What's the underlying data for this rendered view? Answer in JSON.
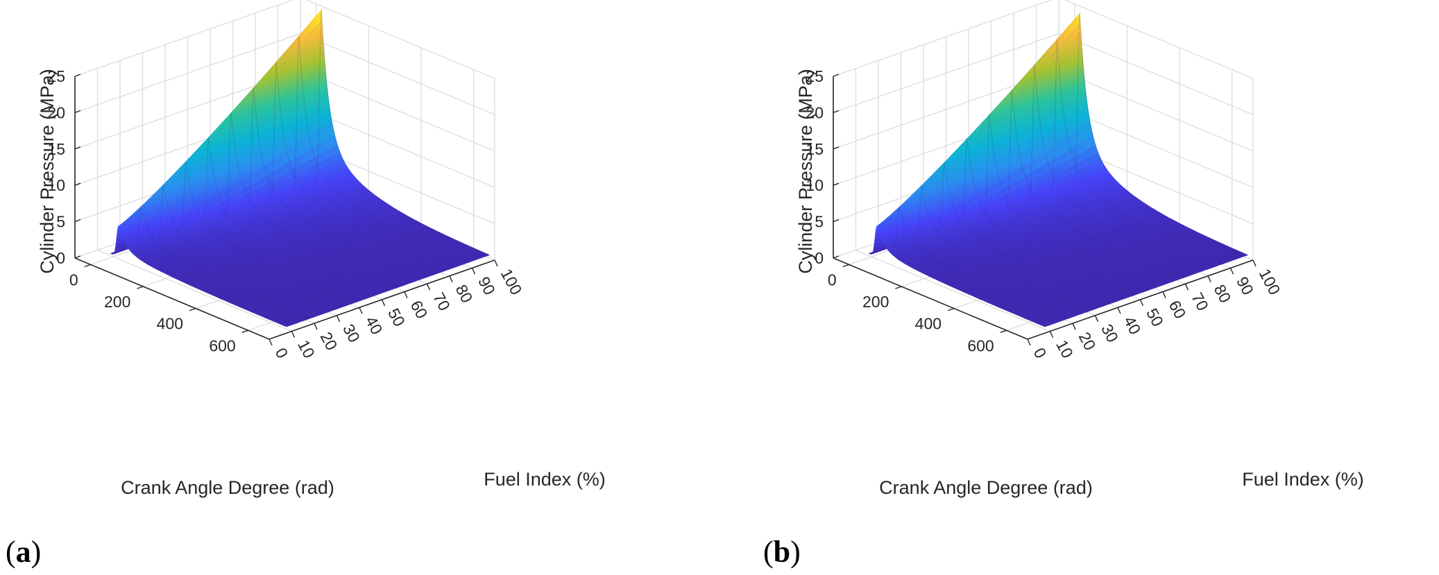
{
  "colors": {
    "colormap": [
      "#3e26a8",
      "#4743f8",
      "#2b8ef0",
      "#0cb4d6",
      "#2ec39a",
      "#a6c231",
      "#f8ba3e",
      "#f9fb15"
    ],
    "grid": "#dcdcdc",
    "axis": "#262626"
  },
  "chart_data": [
    {
      "panel_label": "a",
      "type": "surface",
      "xlabel": "Crank Angle Degree (rad)",
      "ylabel": "Fuel Index (%)",
      "zlabel": "Cylinder Pressure (MPa)",
      "x_ticks": [
        "0",
        "200",
        "400",
        "600"
      ],
      "y_ticks": [
        "0",
        "10",
        "20",
        "30",
        "40",
        "50",
        "60",
        "70",
        "80",
        "90",
        "100"
      ],
      "z_ticks": [
        "0",
        "5",
        "10",
        "15",
        "20",
        "25"
      ],
      "xlim": [
        -60,
        680
      ],
      "ylim": [
        0,
        100
      ],
      "zlim": [
        0,
        25
      ],
      "surface": {
        "crank_angle_range": [
          0,
          660
        ],
        "fuel_index_range": [
          10,
          100
        ],
        "peak_crank_angle": 20,
        "base_pressure": 0.3,
        "peak_pressure_at_fuel_index": {
          "10": 4.5,
          "100": 24.5
        }
      }
    },
    {
      "panel_label": "b",
      "type": "surface",
      "xlabel": "Crank Angle Degree (rad)",
      "ylabel": "Fuel Index (%)",
      "zlabel": "Cylinder Pressure (MPa)",
      "x_ticks": [
        "0",
        "200",
        "400",
        "600"
      ],
      "y_ticks": [
        "0",
        "10",
        "20",
        "30",
        "40",
        "50",
        "60",
        "70",
        "80",
        "90",
        "100"
      ],
      "z_ticks": [
        "0",
        "5",
        "10",
        "15",
        "20",
        "25"
      ],
      "xlim": [
        -60,
        680
      ],
      "ylim": [
        0,
        100
      ],
      "zlim": [
        0,
        25
      ],
      "surface": {
        "crank_angle_range": [
          0,
          660
        ],
        "fuel_index_range": [
          10,
          100
        ],
        "peak_crank_angle": 20,
        "base_pressure": 0.3,
        "peak_pressure_at_fuel_index": {
          "10": 4.5,
          "100": 24.0
        }
      }
    }
  ]
}
